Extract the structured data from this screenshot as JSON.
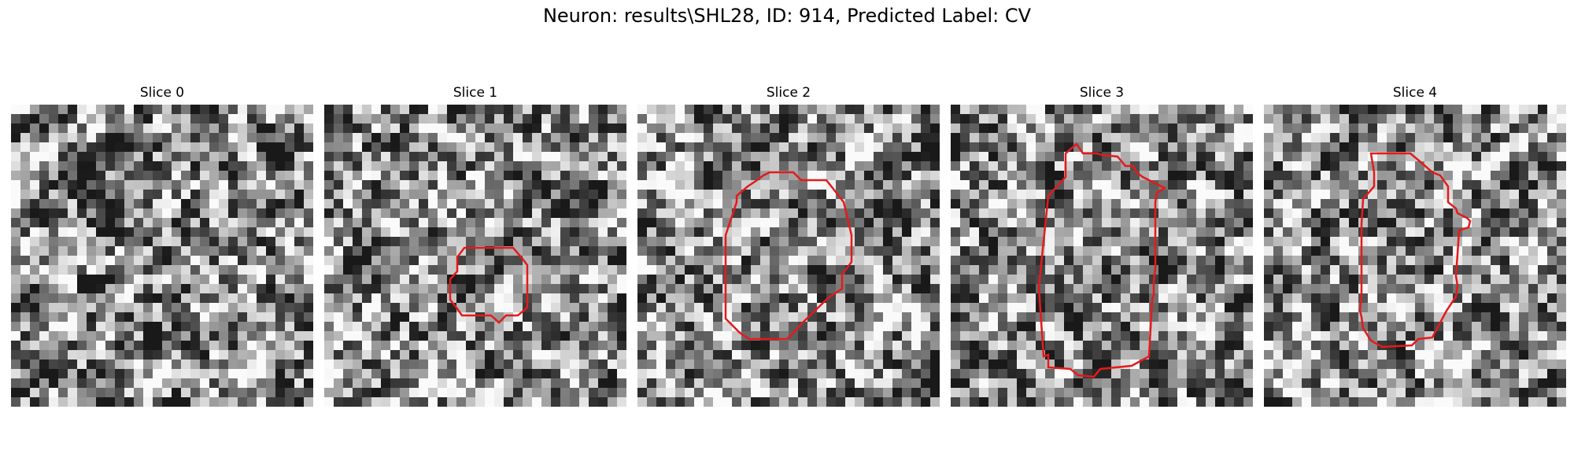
{
  "title": "Neuron: results\\SHL28, ID: 914, Predicted Label: CV",
  "outline_color": "#e41a1c",
  "colormap": "grayscale",
  "panels": [
    {
      "label": "Slice 0",
      "seed": 11,
      "outline": false
    },
    {
      "label": "Slice 1",
      "seed": 23,
      "outline": true
    },
    {
      "label": "Slice 2",
      "seed": 37,
      "outline": true
    },
    {
      "label": "Slice 3",
      "seed": 41,
      "outline": true
    },
    {
      "label": "Slice 4",
      "seed": 53,
      "outline": true
    }
  ]
}
